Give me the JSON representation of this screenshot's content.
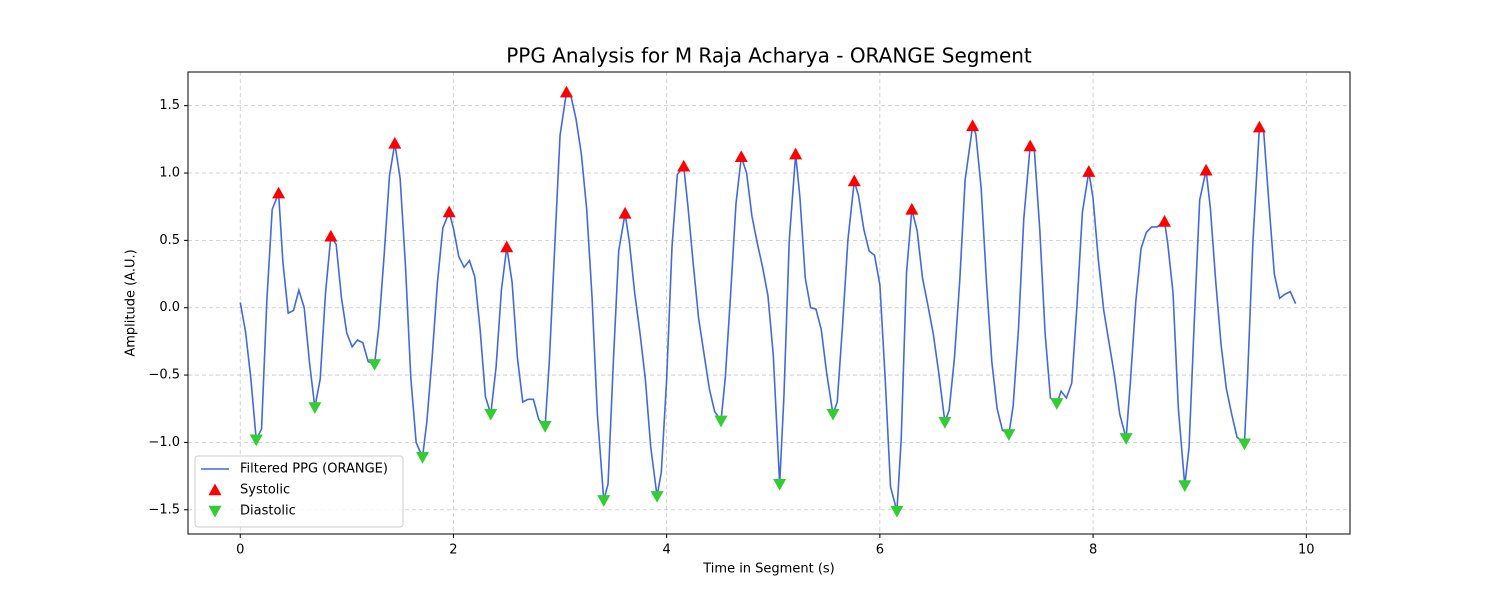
{
  "chart_data": {
    "type": "line",
    "title": "PPG Analysis for M Raja Acharya - ORANGE Segment",
    "xlabel": "Time in Segment (s)",
    "ylabel": "Amplitude (A.U.)",
    "xlim": [
      -0.49,
      10.41
    ],
    "ylim": [
      -1.68,
      1.75
    ],
    "xticks": [
      0,
      2,
      4,
      6,
      8,
      10
    ],
    "yticks": [
      {
        "value": -1.5,
        "label": "−1.5"
      },
      {
        "value": -1,
        "label": "−1.0"
      },
      {
        "value": -0.5,
        "label": "−0.5"
      },
      {
        "value": 0,
        "label": "0.0"
      },
      0.5,
      {
        "value": 1,
        "label": "1.0"
      },
      1.5
    ],
    "grid": true,
    "legend": "lower left",
    "series": [
      {
        "name": "Filtered PPG (ORANGE)",
        "type": "line",
        "color": "#4169e1",
        "x": [
          0,
          0.05,
          0.1,
          0.15,
          0.2,
          0.25,
          0.3,
          0.36,
          0.4,
          0.45,
          0.5,
          0.55,
          0.6,
          0.65,
          0.7,
          0.75,
          0.8,
          0.85,
          0.9,
          0.95,
          1.0,
          1.05,
          1.1,
          1.15,
          1.2,
          1.26,
          1.3,
          1.35,
          1.4,
          1.45,
          1.5,
          1.55,
          1.6,
          1.65,
          1.71,
          1.75,
          1.8,
          1.85,
          1.9,
          1.96,
          2.0,
          2.05,
          2.1,
          2.15,
          2.2,
          2.25,
          2.3,
          2.35,
          2.4,
          2.45,
          2.5,
          2.55,
          2.6,
          2.65,
          2.7,
          2.75,
          2.8,
          2.86,
          2.9,
          2.95,
          3.0,
          3.06,
          3.1,
          3.15,
          3.2,
          3.25,
          3.3,
          3.35,
          3.41,
          3.45,
          3.5,
          3.55,
          3.61,
          3.65,
          3.7,
          3.75,
          3.8,
          3.85,
          3.91,
          3.95,
          4.0,
          4.05,
          4.1,
          4.16,
          4.2,
          4.25,
          4.3,
          4.35,
          4.4,
          4.45,
          4.51,
          4.55,
          4.6,
          4.65,
          4.7,
          4.75,
          4.8,
          4.85,
          4.9,
          4.95,
          5.0,
          5.06,
          5.1,
          5.15,
          5.21,
          5.25,
          5.3,
          5.35,
          5.4,
          5.45,
          5.5,
          5.56,
          5.6,
          5.65,
          5.7,
          5.76,
          5.8,
          5.85,
          5.9,
          5.95,
          6.0,
          6.05,
          6.1,
          6.16,
          6.2,
          6.25,
          6.3,
          6.35,
          6.4,
          6.45,
          6.5,
          6.55,
          6.61,
          6.65,
          6.7,
          6.75,
          6.8,
          6.87,
          6.9,
          6.95,
          7.0,
          7.05,
          7.1,
          7.15,
          7.21,
          7.25,
          7.3,
          7.35,
          7.41,
          7.45,
          7.5,
          7.55,
          7.6,
          7.66,
          7.7,
          7.75,
          7.8,
          7.85,
          7.9,
          7.96,
          8.0,
          8.05,
          8.1,
          8.15,
          8.2,
          8.25,
          8.31,
          8.35,
          8.4,
          8.45,
          8.5,
          8.55,
          8.6,
          8.67,
          8.7,
          8.75,
          8.8,
          8.86,
          8.9,
          8.95,
          9.0,
          9.06,
          9.1,
          9.15,
          9.2,
          9.25,
          9.3,
          9.35,
          9.42,
          9.45,
          9.5,
          9.56,
          9.6,
          9.65,
          9.7,
          9.75,
          9.8,
          9.85,
          9.9
        ],
        "values": [
          0.04,
          -0.18,
          -0.53,
          -0.98,
          -0.9,
          0.06,
          0.73,
          0.85,
          0.34,
          -0.04,
          -0.02,
          0.13,
          0.0,
          -0.41,
          -0.74,
          -0.53,
          0.11,
          0.53,
          0.47,
          0.07,
          -0.19,
          -0.29,
          -0.24,
          -0.26,
          -0.4,
          -0.42,
          -0.14,
          0.39,
          0.98,
          1.22,
          0.96,
          0.31,
          -0.52,
          -1.0,
          -1.11,
          -0.85,
          -0.37,
          0.19,
          0.59,
          0.71,
          0.59,
          0.38,
          0.3,
          0.35,
          0.23,
          -0.16,
          -0.66,
          -0.79,
          -0.44,
          0.13,
          0.45,
          0.19,
          -0.37,
          -0.7,
          -0.68,
          -0.68,
          -0.83,
          -0.88,
          -0.39,
          0.45,
          1.28,
          1.6,
          1.58,
          1.4,
          1.14,
          0.73,
          0.08,
          -0.79,
          -1.43,
          -1.31,
          -0.4,
          0.42,
          0.7,
          0.49,
          0.11,
          -0.19,
          -0.53,
          -1.03,
          -1.4,
          -1.22,
          -0.53,
          0.45,
          0.99,
          1.05,
          0.75,
          0.32,
          -0.08,
          -0.34,
          -0.6,
          -0.77,
          -0.84,
          -0.52,
          0.1,
          0.77,
          1.12,
          1.0,
          0.68,
          0.48,
          0.3,
          0.09,
          -0.35,
          -1.31,
          -0.66,
          0.5,
          1.14,
          0.82,
          0.22,
          0.0,
          -0.01,
          -0.16,
          -0.48,
          -0.79,
          -0.7,
          -0.13,
          0.5,
          0.94,
          0.83,
          0.58,
          0.42,
          0.39,
          0.17,
          -0.53,
          -1.33,
          -1.51,
          -0.98,
          0.26,
          0.73,
          0.57,
          0.22,
          0.02,
          -0.19,
          -0.47,
          -0.85,
          -0.76,
          -0.37,
          0.21,
          0.95,
          1.35,
          1.29,
          0.89,
          0.19,
          -0.4,
          -0.75,
          -0.91,
          -0.94,
          -0.73,
          -0.16,
          0.66,
          1.2,
          1.16,
          0.58,
          -0.19,
          -0.67,
          -0.71,
          -0.62,
          -0.67,
          -0.56,
          0.03,
          0.71,
          1.01,
          0.81,
          0.35,
          -0.02,
          -0.26,
          -0.5,
          -0.79,
          -0.97,
          -0.55,
          0.04,
          0.44,
          0.56,
          0.6,
          0.6,
          0.64,
          0.48,
          0.11,
          -0.75,
          -1.32,
          -1.04,
          -0.09,
          0.8,
          1.02,
          0.74,
          0.2,
          -0.27,
          -0.6,
          -0.79,
          -0.96,
          -1.01,
          -0.5,
          0.5,
          1.34,
          1.31,
          0.77,
          0.25,
          0.07,
          0.1,
          0.12,
          0.03
        ]
      },
      {
        "name": "Systolic",
        "type": "scatter",
        "marker": "triangle-up",
        "color": "#ff0000",
        "x": [
          0.36,
          0.85,
          1.45,
          1.96,
          2.5,
          3.06,
          3.61,
          4.16,
          4.7,
          5.21,
          5.76,
          6.3,
          6.87,
          7.41,
          7.96,
          8.67,
          9.06,
          9.56
        ],
        "values": [
          0.85,
          0.53,
          1.22,
          0.71,
          0.45,
          1.6,
          0.7,
          1.05,
          1.12,
          1.14,
          0.94,
          0.73,
          1.35,
          1.2,
          1.01,
          0.64,
          1.02,
          1.34
        ]
      },
      {
        "name": "Diastolic",
        "type": "scatter",
        "marker": "triangle-down",
        "color": "#32cd32",
        "x": [
          0.15,
          0.7,
          1.26,
          1.71,
          2.35,
          2.86,
          3.41,
          3.91,
          4.51,
          5.06,
          5.56,
          6.16,
          6.61,
          7.21,
          7.66,
          8.31,
          8.86,
          9.42
        ],
        "values": [
          -0.98,
          -0.74,
          -0.42,
          -1.11,
          -0.79,
          -0.88,
          -1.43,
          -1.4,
          -0.84,
          -1.31,
          -0.79,
          -1.51,
          -0.85,
          -0.94,
          -0.71,
          -0.97,
          -1.32,
          -1.01
        ]
      }
    ]
  }
}
